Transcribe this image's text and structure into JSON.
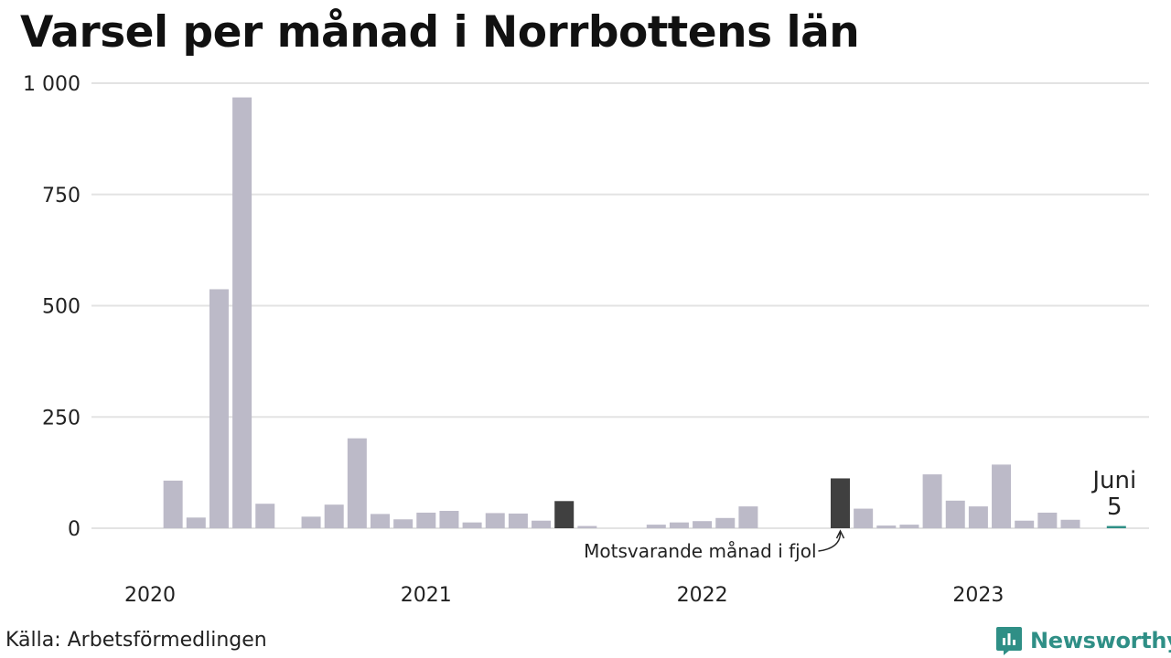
{
  "chart_data": {
    "type": "bar",
    "title": "Varsel per månad i Norrbottens län",
    "ylim": [
      0,
      1000
    ],
    "y_ticks": [
      {
        "value": 0,
        "label": "0"
      },
      {
        "value": 250,
        "label": "250"
      },
      {
        "value": 500,
        "label": "500"
      },
      {
        "value": 750,
        "label": "750"
      },
      {
        "value": 1000,
        "label": "1 000"
      }
    ],
    "x_ticks": [
      {
        "index": 0,
        "label": "2020"
      },
      {
        "index": 12,
        "label": "2021"
      },
      {
        "index": 24,
        "label": "2022"
      },
      {
        "index": 36,
        "label": "2023"
      }
    ],
    "grid": true,
    "colors": {
      "default": "#bcbac8",
      "highlight": "#404040",
      "current": "#2f8f86",
      "grid": "#e3e3e3"
    },
    "values": [
      0,
      107,
      24,
      537,
      968,
      55,
      0,
      26,
      53,
      202,
      32,
      20,
      35,
      39,
      13,
      34,
      33,
      17,
      61,
      5,
      0,
      0,
      8,
      13,
      16,
      23,
      49,
      0,
      0,
      0,
      112,
      44,
      6,
      8,
      121,
      62,
      49,
      143,
      17,
      35,
      19,
      0,
      5
    ],
    "highlight_indices": [
      18,
      30
    ],
    "current_index": 42,
    "annotation": {
      "text": "Motsvarande månad i fjol",
      "index": 30
    },
    "last_label": {
      "month": "Juni",
      "value": "5"
    }
  },
  "footer": {
    "source": "Källa: Arbetsförmedlingen",
    "brand": "Newsworthy"
  }
}
